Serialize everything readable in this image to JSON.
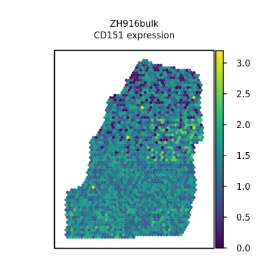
{
  "chart_data": {
    "type": "scatter",
    "title": "ZH916bulk",
    "subtitle": "CD151 expression",
    "xlabel": "",
    "ylabel": "",
    "grid": false,
    "colormap": "viridis",
    "colorbar": {
      "range": [
        0.0,
        3.2
      ],
      "ticks": [
        0.0,
        0.5,
        1.0,
        1.5,
        2.0,
        2.5,
        3.0
      ],
      "tick_labels": [
        "0.0",
        "0.5",
        "1.0",
        "1.5",
        "2.0",
        "2.5",
        "3.0"
      ]
    },
    "x": [],
    "y": [],
    "values": []
  }
}
